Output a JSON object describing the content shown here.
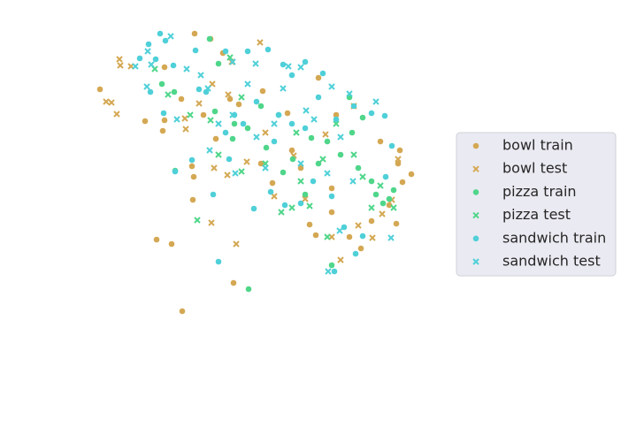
{
  "chart_data": {
    "type": "scatter",
    "legend": "right",
    "xlim": [
      100,
      480
    ],
    "ylim": [
      0,
      400
    ],
    "series": [
      {
        "name": "bowl train",
        "color": "#d4a853",
        "marker": "o",
        "x": [
          113,
          164,
          184,
          186,
          220,
          238,
          252,
          297,
          270,
          230,
          244,
          217,
          219,
          218,
          177,
          194,
          206,
          264,
          308,
          330,
          360,
          380,
          350,
          357,
          375,
          395,
          408,
          420,
          440,
          448,
          430,
          452,
          465,
          455,
          450,
          340,
          375,
          295,
          325,
          260,
          205,
          186
        ],
        "values": [
          299,
          263,
          252,
          264,
          362,
          356,
          340,
          297,
          282,
          270,
          243,
          212,
          200,
          174,
          129,
          124,
          48,
          80,
          193,
          230,
          312,
          270,
          146,
          134,
          160,
          132,
          119,
          150,
          168,
          147,
          240,
          230,
          203,
          194,
          215,
          210,
          187,
          215,
          272,
          288,
          288,
          324
        ]
      },
      {
        "name": "bowl test",
        "color": "#d4a853",
        "marker": "x",
        "x": [
          120,
          126,
          132,
          135,
          136,
          148,
          209,
          210,
          240,
          258,
          294,
          262,
          267,
          239,
          242,
          257,
          279,
          310,
          332,
          368,
          385,
          375,
          405,
          421,
          432,
          443,
          450,
          400,
          345,
          300,
          225
        ],
        "values": [
          285,
          284,
          271,
          333,
          326,
          325,
          266,
          254,
          305,
          293,
          352,
          330,
          124,
          148,
          210,
          202,
          217,
          178,
          224,
          248,
          106,
          132,
          145,
          131,
          158,
          174,
          220,
          280,
          175,
          250,
          283
        ]
      },
      {
        "name": "pizza train",
        "color": "#4fd68a",
        "marker": "o",
        "x": [
          237,
          247,
          183,
          197,
          243,
          280,
          263,
          301,
          331,
          352,
          370,
          385,
          398,
          405,
          420,
          425,
          440,
          445,
          433,
          375,
          281,
          198,
          320,
          345,
          395,
          410,
          315,
          265,
          295,
          360
        ],
        "values": [
          356,
          328,
          305,
          296,
          274,
          255,
          243,
          233,
          220,
          244,
          240,
          225,
          250,
          210,
          195,
          180,
          175,
          185,
          170,
          100,
          73,
          207,
          205,
          180,
          290,
          267,
          270,
          260,
          280,
          215
        ]
      },
      {
        "name": "pizza test",
        "color": "#4fd68a",
        "marker": "x",
        "x": [
          190,
          215,
          247,
          273,
          273,
          223,
          238,
          318,
          330,
          350,
          335,
          365,
          380,
          400,
          410,
          430,
          420,
          445,
          300,
          340,
          370,
          260,
          175
        ],
        "values": [
          293,
          270,
          225,
          290,
          206,
          151,
          264,
          160,
          165,
          167,
          250,
          220,
          260,
          225,
          200,
          190,
          165,
          165,
          215,
          195,
          132,
          335,
          322
        ]
      },
      {
        "name": "sandwich train",
        "color": "#4fd0d8",
        "marker": "o",
        "x": [
          181,
          187,
          168,
          158,
          176,
          196,
          221,
          255,
          280,
          303,
          320,
          330,
          345,
          365,
          225,
          233,
          265,
          290,
          310,
          330,
          345,
          360,
          380,
          400,
          420,
          435,
          217,
          241,
          259,
          287,
          306,
          322,
          340,
          354,
          375,
          389,
          402,
          410,
          247,
          378,
          443,
          436,
          198,
          185,
          170,
          255,
          275,
          315
        ],
        "values": [
          362,
          354,
          350,
          334,
          333,
          326,
          343,
          342,
          342,
          344,
          327,
          315,
          330,
          317,
          299,
          296,
          270,
          285,
          240,
          260,
          255,
          290,
          265,
          280,
          272,
          269,
          219,
          180,
          220,
          164,
          183,
          168,
          170,
          195,
          178,
          143,
          113,
          133,
          104,
          93,
          235,
          200,
          206,
          272,
          296,
          250,
          260,
          270
        ]
      },
      {
        "name": "sandwich test",
        "color": "#4fd0d8",
        "marker": "x",
        "x": [
          193,
          167,
          171,
          153,
          211,
          227,
          263,
          289,
          326,
          340,
          235,
          280,
          320,
          346,
          375,
          395,
          425,
          263,
          247,
          290,
          310,
          355,
          385,
          237,
          266,
          300,
          340,
          370,
          399,
          442,
          384,
          371,
          166,
          200
        ],
        "values": [
          359,
          342,
          327,
          325,
          322,
          315,
          330,
          328,
          325,
          324,
          300,
          305,
          300,
          275,
          302,
          294,
          285,
          270,
          260,
          245,
          260,
          265,
          245,
          230,
          204,
          210,
          215,
          204,
          195,
          131,
          139,
          93,
          302,
          265
        ]
      }
    ]
  }
}
